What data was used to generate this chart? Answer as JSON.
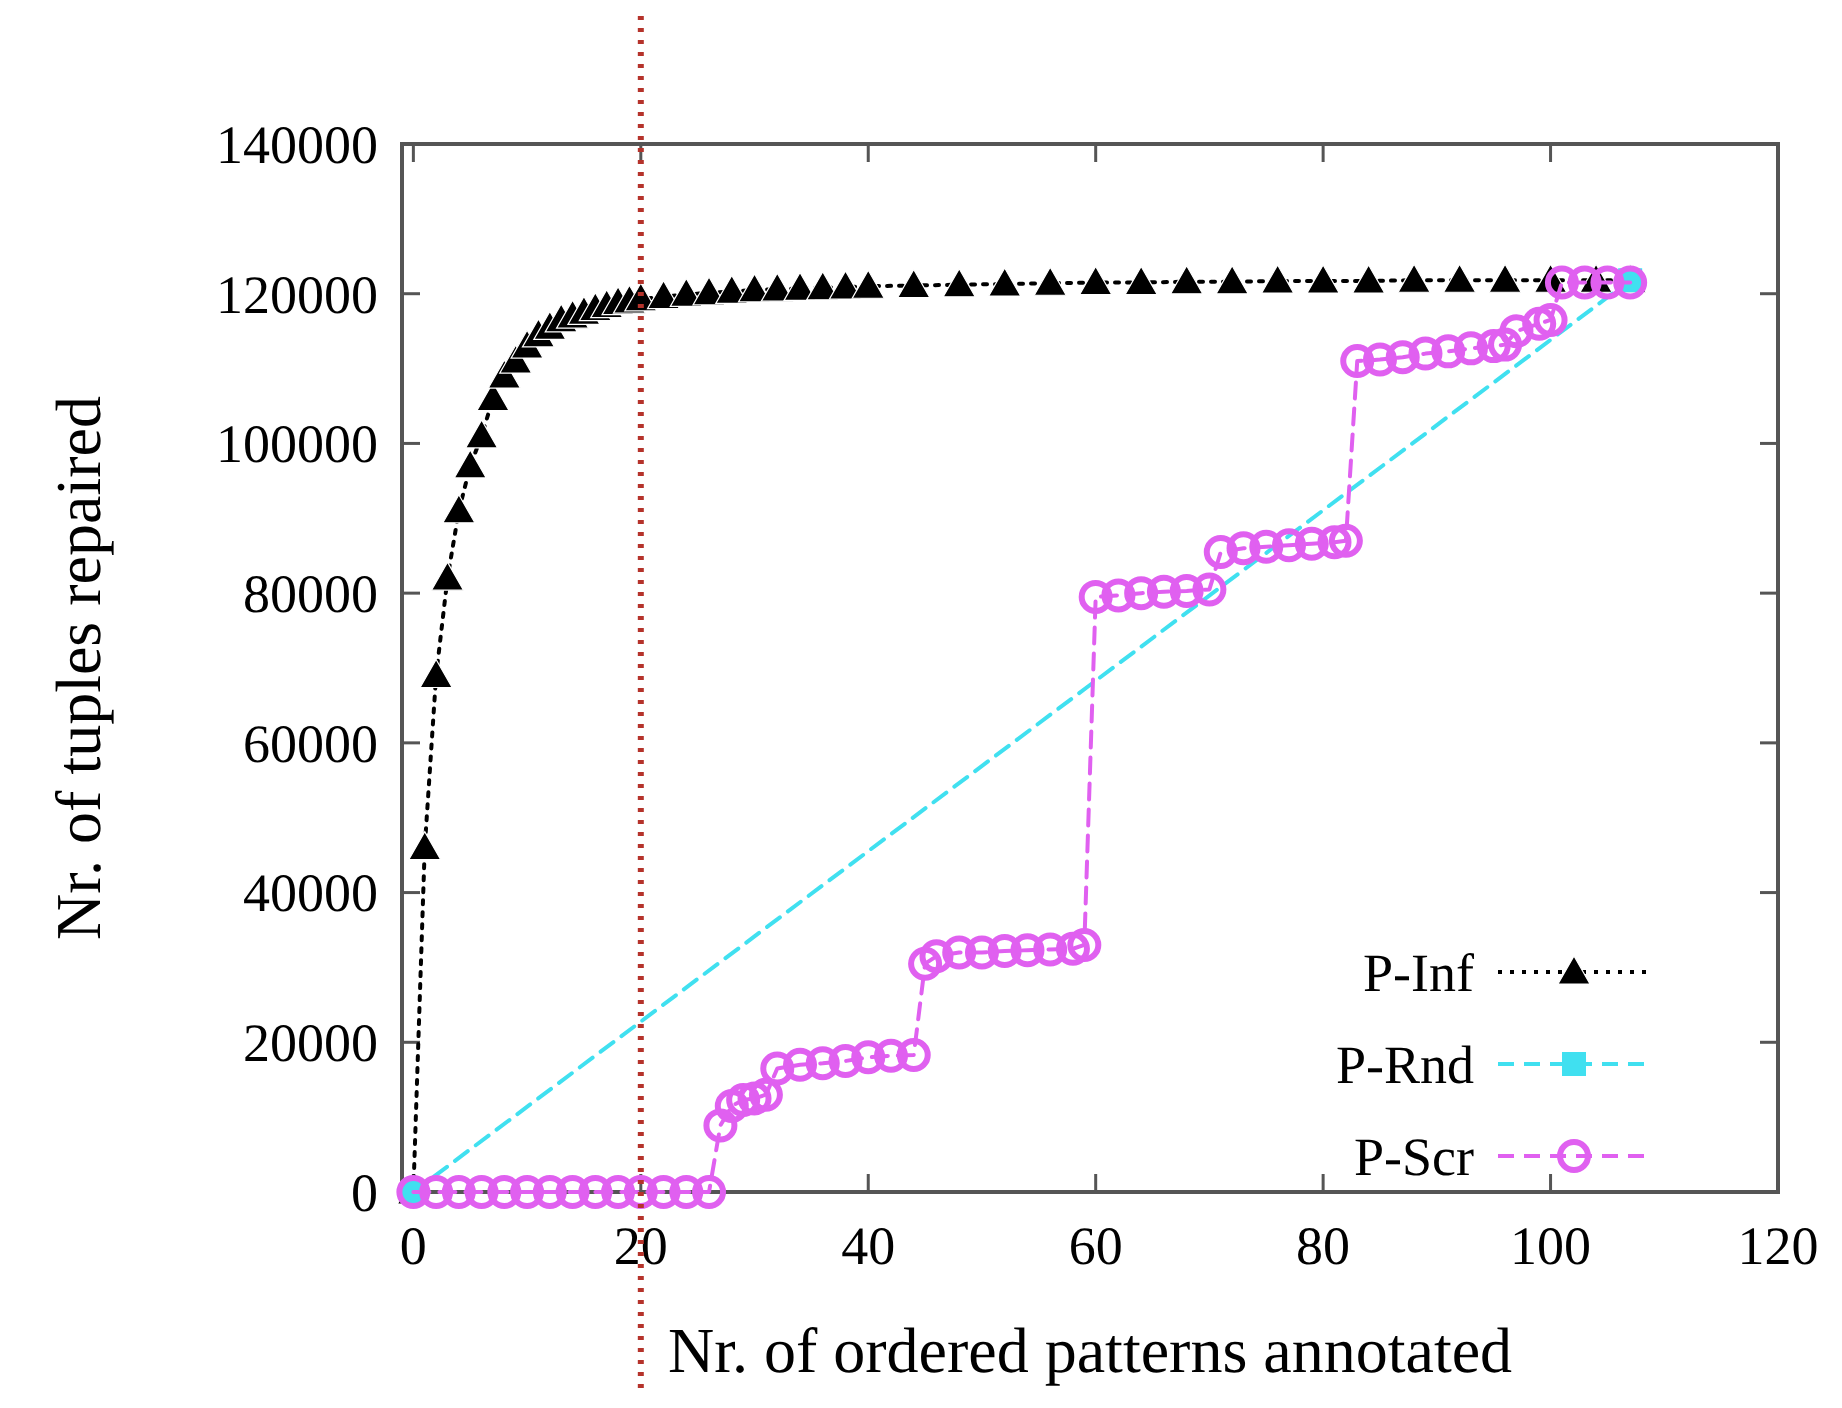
{
  "chart_data": {
    "type": "line",
    "xlabel": "Nr. of ordered patterns annotated",
    "ylabel": "Nr. of tuples repaired",
    "xlim": [
      -1,
      120
    ],
    "ylim": [
      0,
      140000
    ],
    "xticks": [
      0,
      20,
      40,
      60,
      80,
      100,
      120
    ],
    "yticks": [
      0,
      20000,
      40000,
      60000,
      80000,
      100000,
      120000,
      140000
    ],
    "grid": false,
    "legend": "bottom right",
    "ref_lines": [
      {
        "axis": "x",
        "value": 20,
        "color": "#b5332b",
        "line_style": "dotted"
      }
    ],
    "series": [
      {
        "name": "P-Inf",
        "color": "#000000",
        "marker": "triangle",
        "line_style": "dotted",
        "x": [
          0,
          1,
          2,
          3,
          4,
          5,
          6,
          7,
          8,
          9,
          10,
          11,
          12,
          13,
          14,
          15,
          16,
          17,
          18,
          19,
          20,
          22,
          24,
          26,
          28,
          30,
          32,
          34,
          36,
          38,
          40,
          44,
          48,
          52,
          56,
          60,
          64,
          68,
          72,
          76,
          80,
          84,
          88,
          92,
          96,
          100,
          104,
          107
        ],
        "values": [
          0,
          46000,
          69000,
          82000,
          91000,
          97000,
          101000,
          106000,
          109000,
          111000,
          113000,
          114500,
          115500,
          116500,
          117000,
          117500,
          118000,
          118400,
          118800,
          119000,
          119300,
          119600,
          119900,
          120100,
          120300,
          120500,
          120600,
          120700,
          120800,
          120900,
          121000,
          121100,
          121200,
          121300,
          121400,
          121500,
          121500,
          121600,
          121600,
          121700,
          121700,
          121700,
          121800,
          121800,
          121800,
          121800,
          121800,
          121800
        ]
      },
      {
        "name": "P-Rnd",
        "color": "#40e0f0",
        "marker": "square",
        "line_style": "dashed",
        "x": [
          0,
          107
        ],
        "values": [
          0,
          121800
        ]
      },
      {
        "name": "P-Scr",
        "color": "#e060f0",
        "marker": "circle",
        "line_style": "dashed",
        "x": [
          0,
          2,
          4,
          6,
          8,
          10,
          12,
          14,
          16,
          18,
          20,
          22,
          24,
          26,
          27,
          28,
          29,
          30,
          31,
          32,
          34,
          36,
          38,
          40,
          42,
          44,
          45,
          46,
          48,
          50,
          52,
          54,
          56,
          58,
          59,
          60,
          62,
          64,
          66,
          68,
          70,
          71,
          73,
          75,
          77,
          79,
          81,
          82,
          83,
          85,
          87,
          89,
          91,
          93,
          95,
          96,
          97,
          99,
          100,
          101,
          103,
          105,
          107
        ],
        "values": [
          0,
          0,
          0,
          0,
          0,
          0,
          0,
          0,
          0,
          0,
          0,
          0,
          0,
          0,
          8900,
          11500,
          12300,
          12500,
          13000,
          16500,
          17000,
          17200,
          17500,
          18000,
          18200,
          18300,
          30500,
          31500,
          32000,
          32000,
          32200,
          32300,
          32400,
          32500,
          33000,
          79500,
          79700,
          80000,
          80200,
          80300,
          80500,
          85500,
          86000,
          86200,
          86400,
          86600,
          86800,
          87000,
          111000,
          111200,
          111500,
          112000,
          112300,
          112700,
          113000,
          113200,
          115000,
          116000,
          116500,
          121500,
          121500,
          121500,
          121500
        ]
      }
    ]
  }
}
